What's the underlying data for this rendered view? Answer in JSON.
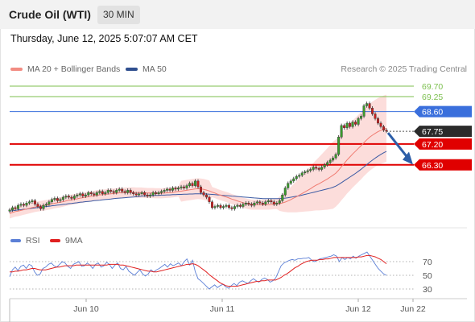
{
  "header": {
    "title": "Crude Oil (WTI)",
    "period": "30 MIN",
    "datetime": "Thursday, June 12, 2025 5:07:07 AM CET"
  },
  "legend_main": [
    {
      "label": "MA 20 + Bollinger Bands",
      "color": "#f28c82"
    },
    {
      "label": "MA 50",
      "color": "#2f4f8f"
    }
  ],
  "source": "Research © 2025 Trading Central",
  "legend_rsi": [
    {
      "label": "RSI",
      "color": "#5b7fd6"
    },
    {
      "label": "9MA",
      "color": "#e02020"
    }
  ],
  "colors": {
    "candle_up": "#3a9b2c",
    "candle_down": "#c81e1e",
    "bb_fill": "#fbd2cf",
    "ma20": "#f07c72",
    "ma50": "#3b5aa3",
    "resistance": "#7cbf4e",
    "pivot_line": "#3a6fdc",
    "support_line": "#e00000",
    "last_label": "#2b2b2b",
    "arrow": "#2d5ea8"
  },
  "chart_data": [
    {
      "type": "candlestick",
      "title": "Crude Oil (WTI) 30 MIN",
      "x_labels": [
        "Jun 10",
        "Jun 11",
        "Jun 12",
        "Jun 22"
      ],
      "ylim": [
        63.9,
        70.0
      ],
      "levels": [
        {
          "value": 69.7,
          "label": "69.70",
          "kind": "resistance"
        },
        {
          "value": 69.25,
          "label": "69.25",
          "kind": "resistance"
        },
        {
          "value": 68.6,
          "label": "68.60",
          "kind": "pivot"
        },
        {
          "value": 67.75,
          "label": "67.75",
          "kind": "last"
        },
        {
          "value": 67.2,
          "label": "67.20",
          "kind": "support"
        },
        {
          "value": 66.3,
          "label": "66.30",
          "kind": "support"
        }
      ],
      "close": [
        64.35,
        64.45,
        64.4,
        64.55,
        64.6,
        64.55,
        64.65,
        64.7,
        64.75,
        64.6,
        64.5,
        64.4,
        64.55,
        64.6,
        64.7,
        64.8,
        64.85,
        64.75,
        64.8,
        64.9,
        64.95,
        64.9,
        64.85,
        64.95,
        65.0,
        65.05,
        64.95,
        65.0,
        65.1,
        65.05,
        65.0,
        65.1,
        65.15,
        65.05,
        65.1,
        65.2,
        65.15,
        65.1,
        65.2,
        65.25,
        65.15,
        65.1,
        65.2,
        65.1,
        65.05,
        65.0,
        65.05,
        65.1,
        65.0,
        64.95,
        65.0,
        65.1,
        65.05,
        65.1,
        65.15,
        65.2,
        65.25,
        65.2,
        65.3,
        65.25,
        65.3,
        65.35,
        65.3,
        65.4,
        65.5,
        65.4,
        65.6,
        65.35,
        65.1,
        65.0,
        64.9,
        64.7,
        64.45,
        64.5,
        64.55,
        64.45,
        64.5,
        64.55,
        64.45,
        64.4,
        64.5,
        64.55,
        64.5,
        64.6,
        64.65,
        64.6,
        64.55,
        64.65,
        64.7,
        64.65,
        64.6,
        64.7,
        64.75,
        64.7,
        64.6,
        64.65,
        64.75,
        65.0,
        65.3,
        65.5,
        65.6,
        65.7,
        65.8,
        65.85,
        65.95,
        66.0,
        66.05,
        66.1,
        66.2,
        66.15,
        66.1,
        66.2,
        66.3,
        66.4,
        66.5,
        66.6,
        66.75,
        67.5,
        68.0,
        67.9,
        68.1,
        67.95,
        68.15,
        68.05,
        68.3,
        68.4,
        68.85,
        68.95,
        68.75,
        68.5,
        68.3,
        68.1,
        67.95,
        67.8,
        67.75
      ],
      "ma20": [
        64.2,
        64.24,
        64.28,
        64.3,
        64.33,
        64.36,
        64.39,
        64.42,
        64.45,
        64.48,
        64.5,
        64.52,
        64.54,
        64.56,
        64.58,
        64.61,
        64.64,
        64.66,
        64.68,
        64.71,
        64.74,
        64.77,
        64.79,
        64.81,
        64.83,
        64.86,
        64.88,
        64.9,
        64.92,
        64.94,
        64.96,
        64.98,
        65.0,
        65.01,
        65.02,
        65.04,
        65.05,
        65.06,
        65.07,
        65.09,
        65.09,
        65.1,
        65.1,
        65.11,
        65.11,
        65.1,
        65.1,
        65.1,
        65.09,
        65.08,
        65.08,
        65.08,
        65.07,
        65.07,
        65.07,
        65.08,
        65.09,
        65.1,
        65.11,
        65.13,
        65.15,
        65.16,
        65.18,
        65.2,
        65.22,
        65.24,
        65.26,
        65.27,
        65.26,
        65.24,
        65.21,
        65.17,
        65.12,
        65.08,
        65.03,
        64.99,
        64.95,
        64.91,
        64.87,
        64.82,
        64.78,
        64.74,
        64.7,
        64.66,
        64.63,
        64.6,
        64.58,
        64.58,
        64.58,
        64.58,
        64.58,
        64.58,
        64.58,
        64.59,
        64.6,
        64.61,
        64.62,
        64.65,
        64.69,
        64.74,
        64.8,
        64.86,
        64.92,
        64.99,
        65.06,
        65.13,
        65.2,
        65.27,
        65.35,
        65.42,
        65.48,
        65.55,
        65.62,
        65.69,
        65.77,
        65.85,
        65.94,
        66.07,
        66.22,
        66.36,
        66.51,
        66.64,
        66.77,
        66.89,
        67.01,
        67.13,
        67.26,
        67.38,
        67.49,
        67.58,
        67.66,
        67.73,
        67.79,
        67.84,
        67.88
      ],
      "ma50": [
        64.3,
        64.32,
        64.33,
        64.35,
        64.36,
        64.38,
        64.39,
        64.41,
        64.42,
        64.44,
        64.45,
        64.47,
        64.48,
        64.5,
        64.51,
        64.53,
        64.54,
        64.56,
        64.57,
        64.59,
        64.6,
        64.62,
        64.63,
        64.65,
        64.66,
        64.68,
        64.69,
        64.71,
        64.72,
        64.73,
        64.75,
        64.76,
        64.77,
        64.79,
        64.8,
        64.81,
        64.82,
        64.84,
        64.85,
        64.86,
        64.87,
        64.88,
        64.89,
        64.9,
        64.91,
        64.92,
        64.93,
        64.94,
        64.95,
        64.96,
        64.97,
        64.97,
        64.98,
        64.98,
        64.99,
        64.99,
        65.0,
        65.0,
        65.01,
        65.01,
        65.02,
        65.02,
        65.03,
        65.03,
        65.04,
        65.04,
        65.05,
        65.05,
        65.05,
        65.05,
        65.04,
        65.03,
        65.02,
        65.01,
        65.0,
        64.99,
        64.98,
        64.97,
        64.96,
        64.95,
        64.94,
        64.93,
        64.92,
        64.91,
        64.9,
        64.89,
        64.88,
        64.87,
        64.86,
        64.85,
        64.84,
        64.84,
        64.84,
        64.84,
        64.84,
        64.84,
        64.84,
        64.85,
        64.86,
        64.88,
        64.9,
        64.92,
        64.94,
        64.96,
        64.99,
        65.02,
        65.05,
        65.08,
        65.11,
        65.14,
        65.17,
        65.2,
        65.23,
        65.26,
        65.29,
        65.33,
        65.38,
        65.45,
        65.53,
        65.61,
        65.69,
        65.77,
        65.85,
        65.93,
        66.02,
        66.11,
        66.21,
        66.31,
        66.41,
        66.5,
        66.59,
        66.67,
        66.75,
        66.82,
        66.88
      ]
    },
    {
      "type": "line",
      "title": "RSI",
      "reference_levels": [
        70,
        50,
        30
      ],
      "series": [
        {
          "name": "RSI",
          "values": [
            48,
            58,
            62,
            57,
            63,
            65,
            60,
            66,
            64,
            55,
            50,
            52,
            60,
            62,
            66,
            68,
            64,
            62,
            66,
            70,
            68,
            63,
            60,
            66,
            68,
            70,
            63,
            64,
            68,
            65,
            60,
            66,
            68,
            62,
            64,
            69,
            66,
            60,
            65,
            68,
            60,
            58,
            63,
            56,
            53,
            50,
            54,
            58,
            52,
            49,
            52,
            58,
            55,
            58,
            60,
            63,
            66,
            62,
            67,
            64,
            66,
            68,
            64,
            70,
            74,
            65,
            72,
            55,
            45,
            42,
            38,
            34,
            30,
            33,
            36,
            32,
            35,
            37,
            33,
            31,
            35,
            38,
            35,
            40,
            42,
            40,
            38,
            42,
            45,
            42,
            40,
            44,
            46,
            44,
            40,
            42,
            46,
            55,
            64,
            68,
            70,
            72,
            73,
            72,
            74,
            74,
            75,
            75,
            76,
            72,
            70,
            72,
            74,
            75,
            76,
            77,
            78,
            80,
            78,
            70,
            76,
            73,
            76,
            74,
            78,
            75,
            78,
            80,
            82,
            84,
            78,
            72,
            66,
            60,
            56,
            52,
            50
          ]
        },
        {
          "name": "9MA",
          "values": [
            55,
            55,
            56,
            56,
            57,
            58,
            58,
            59,
            60,
            60,
            59,
            58,
            58,
            58,
            59,
            60,
            61,
            62,
            62,
            63,
            64,
            64,
            64,
            64,
            65,
            65,
            65,
            65,
            65,
            65,
            65,
            65,
            65,
            65,
            65,
            65,
            66,
            66,
            66,
            66,
            65,
            65,
            64,
            63,
            62,
            61,
            60,
            59,
            58,
            57,
            56,
            56,
            55,
            55,
            56,
            57,
            58,
            59,
            60,
            61,
            62,
            63,
            64,
            65,
            66,
            66,
            67,
            66,
            64,
            61,
            58,
            55,
            51,
            48,
            45,
            42,
            39,
            37,
            35,
            34,
            34,
            34,
            34,
            35,
            36,
            37,
            38,
            39,
            40,
            41,
            41,
            42,
            42,
            43,
            43,
            43,
            43,
            45,
            47,
            50,
            52,
            55,
            58,
            61,
            63,
            66,
            68,
            70,
            71,
            72,
            72,
            72,
            73,
            73,
            74,
            74,
            75,
            76,
            76,
            76,
            76,
            76,
            76,
            76,
            76,
            76,
            77,
            77,
            78,
            79,
            79,
            78,
            77,
            75,
            73,
            70,
            67
          ]
        }
      ]
    }
  ]
}
